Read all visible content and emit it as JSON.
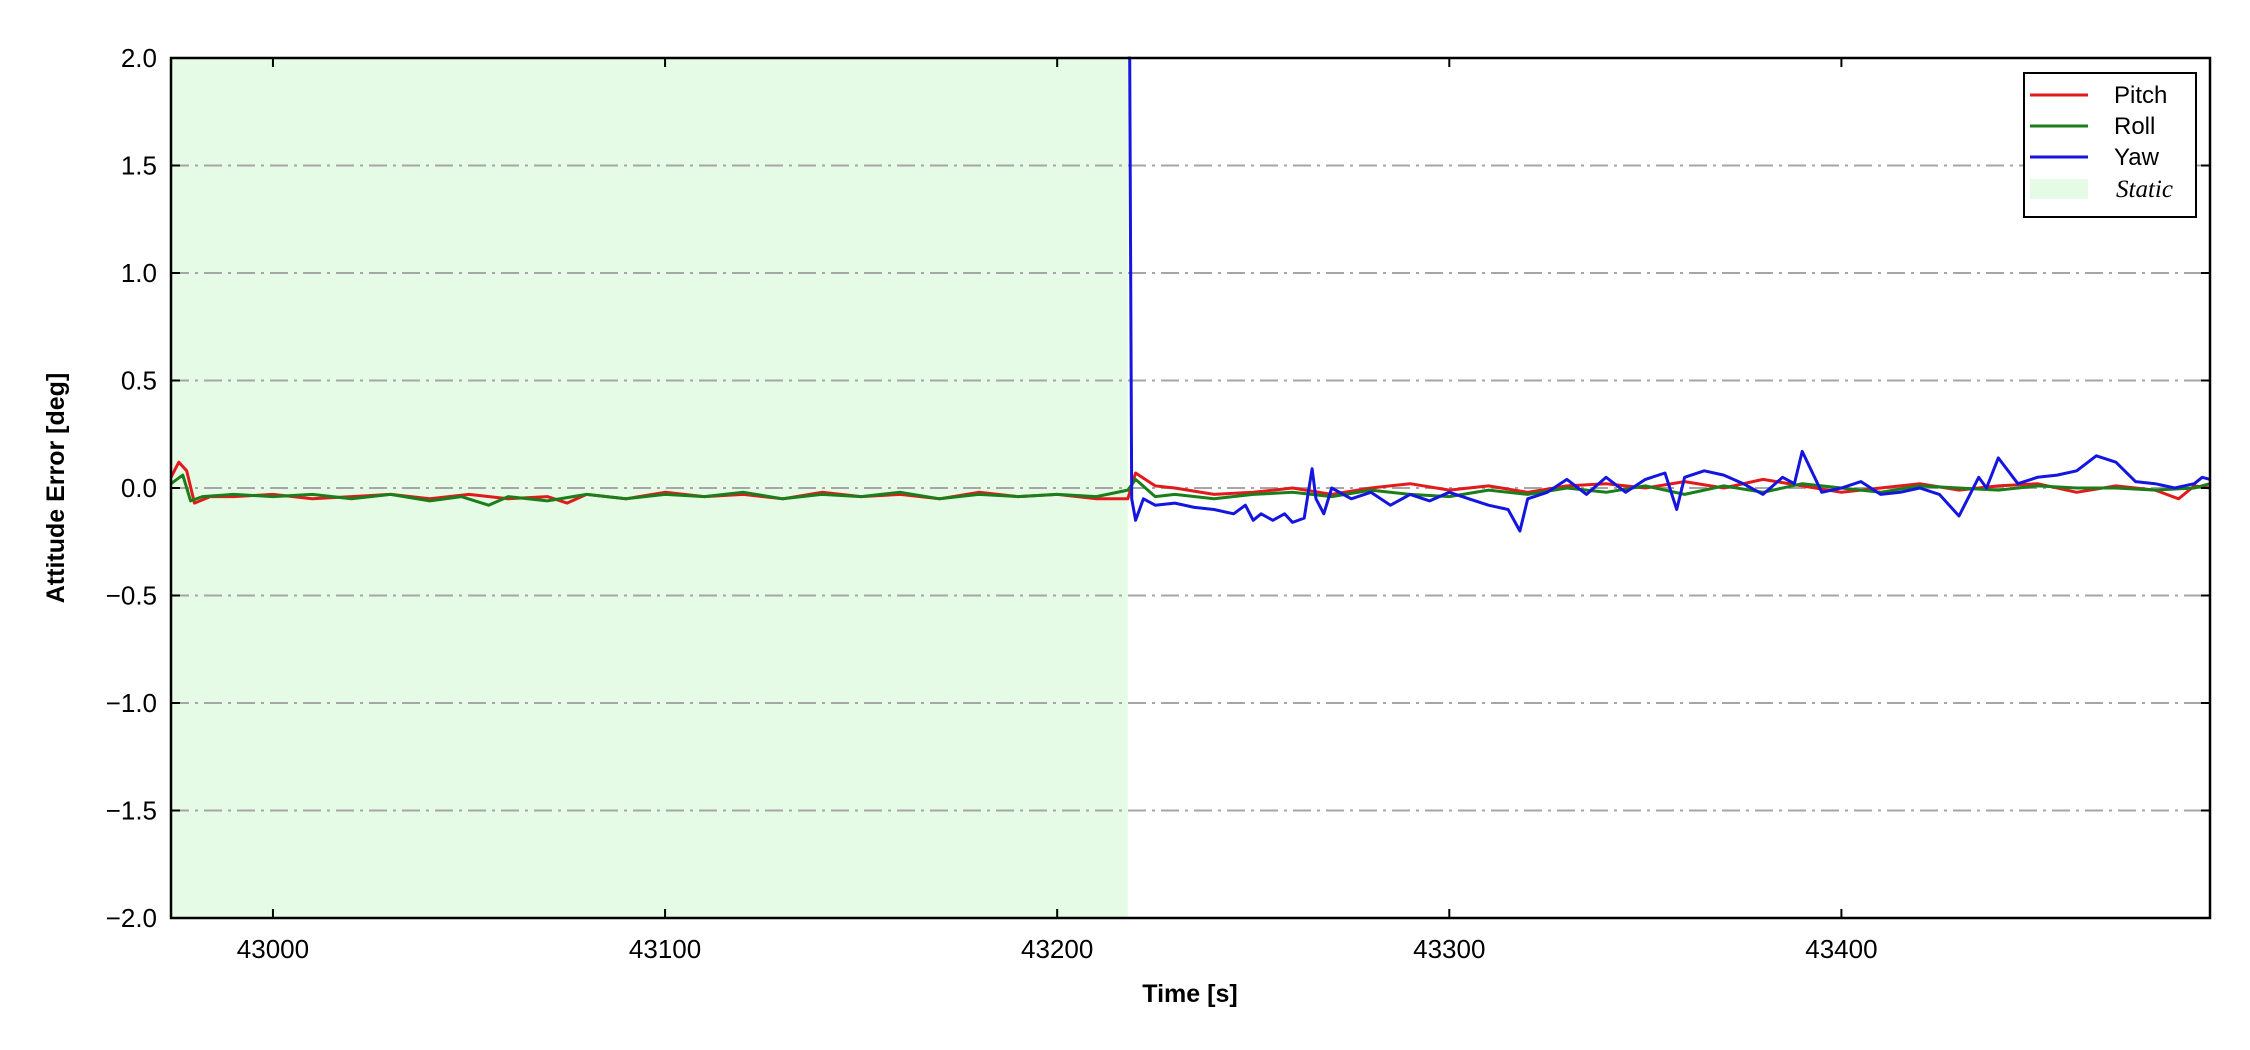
{
  "chart_data": {
    "type": "line",
    "title": "",
    "xlabel": "Time [s]",
    "ylabel": "Attitude Error [deg]",
    "xlim": [
      42974,
      43494
    ],
    "ylim": [
      -2.0,
      2.0
    ],
    "xticks": [
      43000,
      43100,
      43200,
      43300,
      43400
    ],
    "xtick_labels": [
      "43000",
      "43100",
      "43200",
      "43300",
      "43400"
    ],
    "yticks": [
      2.0,
      1.5,
      1.0,
      0.5,
      0.0,
      -0.5,
      -1.0,
      -1.5,
      -2.0
    ],
    "ytick_labels": [
      "2.0",
      "1.5",
      "1.0",
      "0.5",
      "0.0",
      "−0.5",
      "−1.0",
      "−1.5",
      "−2.0"
    ],
    "grid": "horizontal dash-dot",
    "legend_position": "top-right",
    "static_region": {
      "label": "Static",
      "x_start": 42974,
      "x_end": 43218,
      "color": "#e6fbe6"
    },
    "series": [
      {
        "name": "Pitch",
        "color": "#e31a1c",
        "x": [
          42974,
          42976,
          42978,
          42980,
          42984,
          42990,
          43000,
          43010,
          43020,
          43030,
          43040,
          43050,
          43060,
          43070,
          43075,
          43080,
          43090,
          43100,
          43110,
          43120,
          43130,
          43140,
          43150,
          43160,
          43170,
          43180,
          43190,
          43200,
          43210,
          43218,
          43220,
          43225,
          43230,
          43240,
          43250,
          43260,
          43270,
          43280,
          43290,
          43300,
          43310,
          43320,
          43330,
          43340,
          43350,
          43360,
          43370,
          43380,
          43390,
          43400,
          43410,
          43420,
          43430,
          43440,
          43450,
          43460,
          43470,
          43480,
          43486,
          43490,
          43494
        ],
        "y": [
          0.05,
          0.12,
          0.08,
          -0.07,
          -0.04,
          -0.04,
          -0.03,
          -0.05,
          -0.04,
          -0.03,
          -0.05,
          -0.03,
          -0.05,
          -0.04,
          -0.07,
          -0.03,
          -0.05,
          -0.02,
          -0.04,
          -0.03,
          -0.05,
          -0.02,
          -0.04,
          -0.03,
          -0.05,
          -0.02,
          -0.04,
          -0.03,
          -0.05,
          -0.05,
          0.07,
          0.01,
          0.0,
          -0.03,
          -0.02,
          0.0,
          -0.03,
          0.0,
          0.02,
          -0.01,
          0.01,
          -0.02,
          0.01,
          0.02,
          0.0,
          0.03,
          0.0,
          0.04,
          0.01,
          -0.02,
          0.0,
          0.02,
          -0.01,
          0.01,
          0.02,
          -0.02,
          0.01,
          -0.01,
          -0.05,
          0.01,
          0.0
        ]
      },
      {
        "name": "Roll",
        "color": "#1a7f1a",
        "x": [
          42974,
          42977,
          42979,
          42982,
          42990,
          43000,
          43010,
          43020,
          43030,
          43040,
          43048,
          43055,
          43060,
          43070,
          43080,
          43090,
          43100,
          43110,
          43120,
          43130,
          43140,
          43150,
          43160,
          43170,
          43180,
          43190,
          43200,
          43210,
          43218,
          43220,
          43225,
          43230,
          43240,
          43250,
          43260,
          43270,
          43280,
          43290,
          43300,
          43310,
          43320,
          43330,
          43340,
          43350,
          43360,
          43370,
          43380,
          43390,
          43400,
          43410,
          43420,
          43430,
          43440,
          43450,
          43460,
          43470,
          43480,
          43490,
          43494
        ],
        "y": [
          0.02,
          0.06,
          -0.06,
          -0.04,
          -0.03,
          -0.04,
          -0.03,
          -0.05,
          -0.03,
          -0.06,
          -0.04,
          -0.08,
          -0.04,
          -0.06,
          -0.03,
          -0.05,
          -0.03,
          -0.04,
          -0.02,
          -0.05,
          -0.03,
          -0.04,
          -0.02,
          -0.05,
          -0.03,
          -0.04,
          -0.03,
          -0.04,
          -0.01,
          0.04,
          -0.04,
          -0.03,
          -0.05,
          -0.03,
          -0.02,
          -0.04,
          -0.01,
          -0.03,
          -0.04,
          -0.01,
          -0.03,
          0.0,
          -0.02,
          0.01,
          -0.03,
          0.01,
          -0.02,
          0.02,
          0.0,
          -0.02,
          0.01,
          0.0,
          -0.01,
          0.01,
          0.0,
          0.0,
          -0.01,
          0.0,
          0.02
        ]
      },
      {
        "name": "Yaw",
        "color": "#1515e0",
        "x": [
          43218,
          43218.5,
          43219,
          43220,
          43222,
          43225,
          43230,
          43235,
          43240,
          43245,
          43248,
          43250,
          43252,
          43255,
          43258,
          43260,
          43263,
          43265,
          43266,
          43268,
          43270,
          43275,
          43280,
          43285,
          43290,
          43295,
          43300,
          43305,
          43310,
          43315,
          43318,
          43320,
          43325,
          43330,
          43335,
          43340,
          43345,
          43350,
          43355,
          43358,
          43360,
          43365,
          43370,
          43375,
          43380,
          43385,
          43388,
          43390,
          43395,
          43400,
          43405,
          43410,
          43415,
          43420,
          43425,
          43430,
          43435,
          43437,
          43440,
          43445,
          43450,
          43455,
          43460,
          43465,
          43470,
          43475,
          43480,
          43485,
          43490,
          43492,
          43494
        ],
        "y": [
          2.0,
          2.0,
          -0.05,
          -0.15,
          -0.05,
          -0.08,
          -0.07,
          -0.09,
          -0.1,
          -0.12,
          -0.08,
          -0.15,
          -0.12,
          -0.15,
          -0.12,
          -0.16,
          -0.14,
          0.09,
          -0.05,
          -0.12,
          0.0,
          -0.05,
          -0.02,
          -0.08,
          -0.03,
          -0.06,
          -0.02,
          -0.05,
          -0.08,
          -0.1,
          -0.2,
          -0.05,
          -0.02,
          0.04,
          -0.03,
          0.05,
          -0.02,
          0.04,
          0.07,
          -0.1,
          0.05,
          0.08,
          0.06,
          0.02,
          -0.03,
          0.05,
          0.02,
          0.17,
          -0.02,
          0.0,
          0.03,
          -0.03,
          -0.02,
          0.0,
          -0.03,
          -0.13,
          0.05,
          0.0,
          0.14,
          0.02,
          0.05,
          0.06,
          0.08,
          0.15,
          0.12,
          0.03,
          0.02,
          0.0,
          0.02,
          0.05,
          0.04
        ]
      }
    ]
  }
}
